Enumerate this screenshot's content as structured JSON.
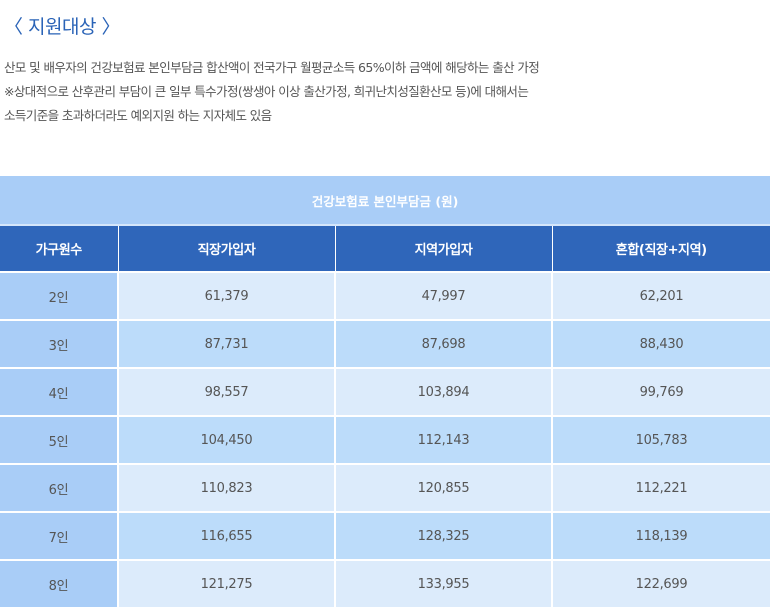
{
  "section_title": "〈 지원대상 〉",
  "description": [
    "산모 및 배우자의 건강보험료 본인부담금 합산액이 전국가구 월평균소득 65%이하 금액에 해당하는 출산 가정",
    "※상대적으로 산후관리 부담이 큰 일부 특수가정(쌍생아 이상 출산가정, 희귀난치성질환산모 등)에 대해서는",
    "소득기준을 초과하더라도 예외지원 하는 지자체도 있음"
  ],
  "table": {
    "caption": "건강보험료 본인부담금 (원)",
    "headers": [
      "가구원수",
      "직장가입자",
      "지역가입자",
      "혼합(직장+지역)"
    ],
    "rows": [
      [
        "2인",
        "61,379",
        "47,997",
        "62,201"
      ],
      [
        "3인",
        "87,731",
        "87,698",
        "88,430"
      ],
      [
        "4인",
        "98,557",
        "103,894",
        "99,769"
      ],
      [
        "5인",
        "104,450",
        "112,143",
        "105,783"
      ],
      [
        "6인",
        "110,823",
        "120,855",
        "112,221"
      ],
      [
        "7인",
        "116,655",
        "128,325",
        "118,139"
      ],
      [
        "8인",
        "121,275",
        "133,955",
        "122,699"
      ]
    ]
  }
}
